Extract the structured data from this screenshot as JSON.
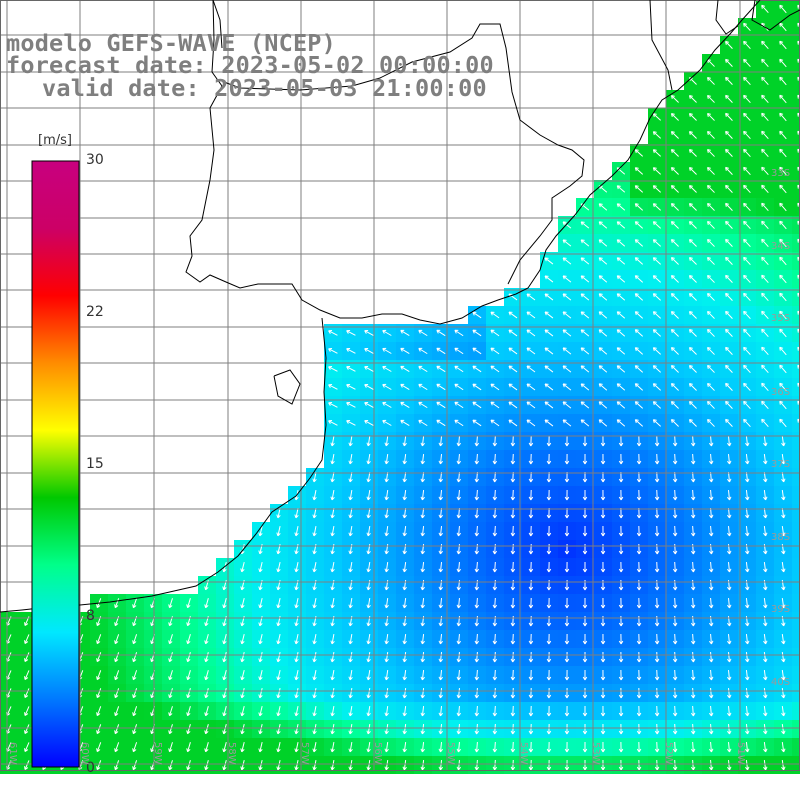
{
  "titles": {
    "line1": "modelo GEFS-WAVE (NCEP)",
    "line2": "forecast date: 2023-05-02 00:00:00",
    "line3": "valid date: 2023-05-03 21:00:00"
  },
  "colorbar": {
    "unit": "[m/s]",
    "ticks": [
      "30",
      "22",
      "15",
      "8",
      "0"
    ],
    "colors": [
      "#0000ff",
      "#0078ff",
      "#00e8ff",
      "#00ff8a",
      "#00c800",
      "#ffff00",
      "#ff8c00",
      "#ff0000",
      "#cc0066",
      "#c8007f"
    ]
  },
  "grid": {
    "lat_labels": [
      "33S",
      "34S",
      "35S",
      "36S",
      "37S",
      "38S",
      "39S",
      "40S"
    ],
    "lon_labels": [
      "61W",
      "60W",
      "59W",
      "58W",
      "57W",
      "56W",
      "55W",
      "54W",
      "53W",
      "52W",
      "51W"
    ]
  },
  "colors": {
    "land": "#ffffff",
    "coast": "#000000",
    "grid": "#7f7f7f",
    "arrow": "#ffffff",
    "title": "#7f7f7f"
  }
}
